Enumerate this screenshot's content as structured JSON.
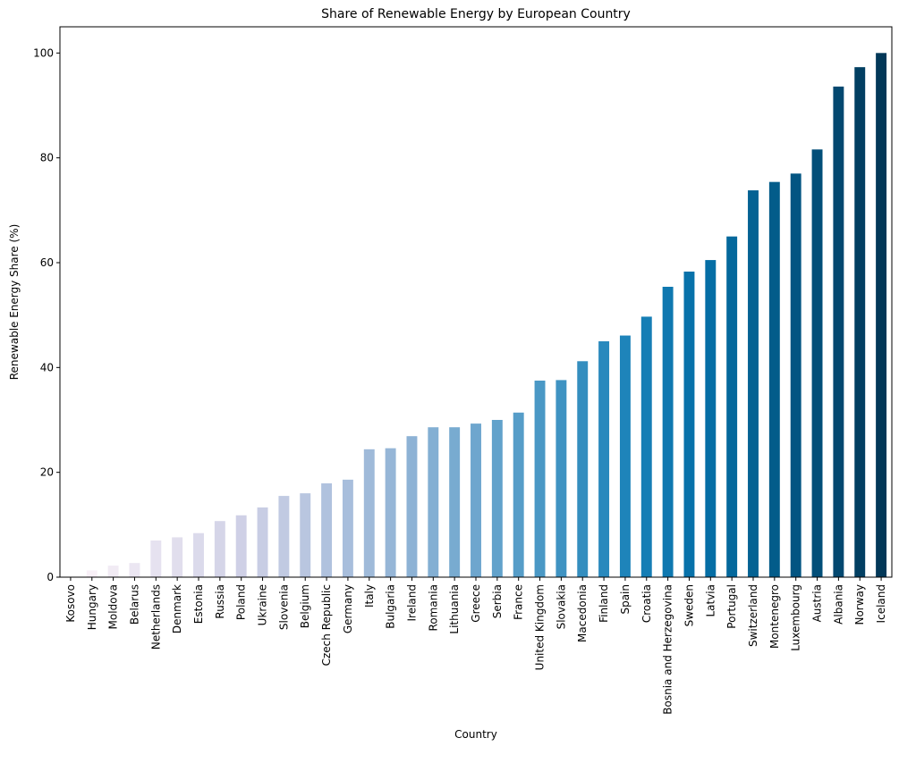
{
  "chart_data": {
    "type": "bar",
    "title": "Share of Renewable Energy by European Country",
    "xlabel": "Country",
    "ylabel": "Renewable Energy Share (%)",
    "ylim": [
      0,
      105
    ],
    "yticks": [
      0,
      20,
      40,
      60,
      80,
      100
    ],
    "grid": false,
    "legend": "none",
    "colormap": "PuBu",
    "categories": [
      "Kosovo",
      "Hungary",
      "Moldova",
      "Belarus",
      "Netherlands",
      "Denmark",
      "Estonia",
      "Russia",
      "Poland",
      "Ukraine",
      "Slovenia",
      "Belgium",
      "Czech Republic",
      "Germany",
      "Italy",
      "Bulgaria",
      "Ireland",
      "Romania",
      "Lithuania",
      "Greece",
      "Serbia",
      "France",
      "United Kingdom",
      "Slovakia",
      "Macedonia",
      "Finland",
      "Spain",
      "Croatia",
      "Bosnia and Herzegovina",
      "Sweden",
      "Latvia",
      "Portugal",
      "Switzerland",
      "Montenegro",
      "Luxembourg",
      "Austria",
      "Albania",
      "Norway",
      "Iceland"
    ],
    "values": [
      0.1,
      1.3,
      2.2,
      2.7,
      7.0,
      7.6,
      8.4,
      10.7,
      11.8,
      13.3,
      15.5,
      16.0,
      17.9,
      18.6,
      24.4,
      24.6,
      26.9,
      28.6,
      28.6,
      29.3,
      30.0,
      31.4,
      37.5,
      37.6,
      41.2,
      45.0,
      46.1,
      49.7,
      55.4,
      58.3,
      60.5,
      65.0,
      73.8,
      75.4,
      77.0,
      81.6,
      93.6,
      97.3,
      100.0
    ],
    "colors": [
      "#fff7fb",
      "#f8f0f7",
      "#f1ebf4",
      "#ebe6f2",
      "#e6e2f0",
      "#e1deed",
      "#dbdaeb",
      "#d5d5e8",
      "#cfd0e6",
      "#c8cde4",
      "#c1cae2",
      "#b9c6e0",
      "#b0c2de",
      "#a8bedc",
      "#9fbad9",
      "#96b6d7",
      "#8db2d5",
      "#83afd3",
      "#78abd0",
      "#6ea6ce",
      "#62a2cb",
      "#569dc8",
      "#4a98c5",
      "#3f93c2",
      "#348ebf",
      "#2989bd",
      "#1e84ba",
      "#167eb5",
      "#0f78b0",
      "#0872aa",
      "#056ea5",
      "#04689c",
      "#046293",
      "#035c8a",
      "#035582",
      "#034f79",
      "#034870",
      "#023f62",
      "#023858"
    ]
  }
}
